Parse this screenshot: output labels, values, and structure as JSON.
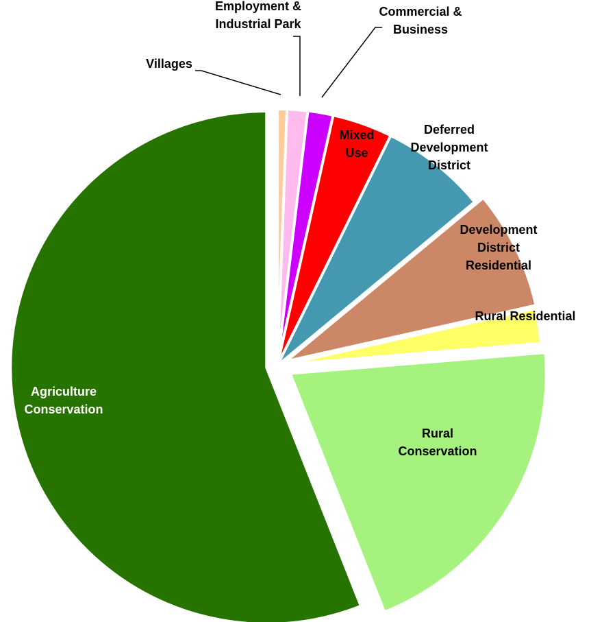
{
  "chart_data": {
    "type": "pie",
    "title": "",
    "slices": [
      {
        "label": [
          "Villages"
        ],
        "value": 0.6,
        "color": "#FFCC99",
        "text_color": "#000000",
        "label_mode": "callout",
        "lines": 1
      },
      {
        "label": [
          "Employment &",
          "Industrial Park"
        ],
        "value": 1.3,
        "color": "#FFBBEE",
        "text_color": "#000000",
        "label_mode": "callout",
        "lines": 2
      },
      {
        "label": [
          "Commercial &",
          "Business"
        ],
        "value": 1.6,
        "color": "#CC00FF",
        "text_color": "#000000",
        "label_mode": "callout",
        "lines": 2
      },
      {
        "label": [
          "Mixed",
          "Use"
        ],
        "value": 3.8,
        "color": "#FF0000",
        "text_color": "#000000",
        "label_mode": "inside",
        "lines": 2
      },
      {
        "label": [
          "Deferred",
          "Development",
          "District"
        ],
        "value": 6.7,
        "color": "#4499B0",
        "text_color": "#000000",
        "label_mode": "inside",
        "lines": 3
      },
      {
        "label": [
          "Development",
          "District",
          "Residential"
        ],
        "value": 7.5,
        "color": "#CC8866",
        "text_color": "#000000",
        "label_mode": "inside",
        "lines": 3
      },
      {
        "label": [
          "Rural Residential"
        ],
        "value": 2.2,
        "color": "#FFFF66",
        "text_color": "#000000",
        "label_mode": "inside",
        "lines": 1
      },
      {
        "label": [
          "Rural",
          "Conservation"
        ],
        "value": 20.3,
        "color": "#A6F27E",
        "text_color": "#000000",
        "label_mode": "inside",
        "lines": 2
      },
      {
        "label": [
          "Agriculture",
          "Conservation"
        ],
        "value": 56.0,
        "color": "#267300",
        "text_color": "#FFFFFF",
        "label_mode": "inside",
        "lines": 2
      }
    ],
    "legend": "none",
    "start_angle": "12 o'clock, clockwise",
    "exploded": true
  }
}
